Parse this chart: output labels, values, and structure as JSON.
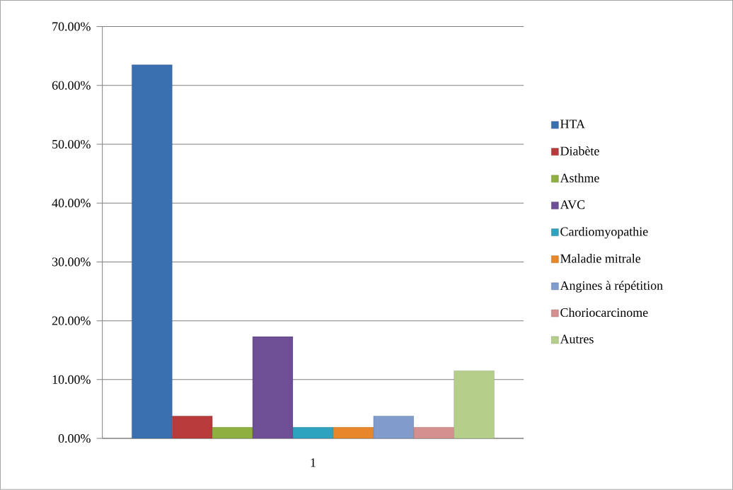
{
  "chart_data": {
    "type": "bar",
    "categories": [
      "1"
    ],
    "series": [
      {
        "name": "HTA",
        "color": "#3a6fb0",
        "values": [
          63.5
        ]
      },
      {
        "name": "Diabète",
        "color": "#b83a3a",
        "values": [
          3.8
        ]
      },
      {
        "name": "Asthme",
        "color": "#8fb040",
        "values": [
          1.9
        ]
      },
      {
        "name": "AVC",
        "color": "#6e4f96",
        "values": [
          17.3
        ]
      },
      {
        "name": "Cardiomyopathie",
        "color": "#2ea3c0",
        "values": [
          1.9
        ]
      },
      {
        "name": "Maladie mitrale",
        "color": "#e8862a",
        "values": [
          1.9
        ]
      },
      {
        "name": "Angines à répétition",
        "color": "#7f9ccc",
        "values": [
          3.8
        ]
      },
      {
        "name": "Choriocarcinome",
        "color": "#d48f8f",
        "values": [
          1.9
        ]
      },
      {
        "name": "Autres",
        "color": "#b5cf8a",
        "values": [
          11.5
        ]
      }
    ],
    "ylim": [
      0,
      70
    ],
    "yticks": [
      {
        "value": 0,
        "label": "0.00%"
      },
      {
        "value": 10,
        "label": "10.00%"
      },
      {
        "value": 20,
        "label": "20.00%"
      },
      {
        "value": 30,
        "label": "30.00%"
      },
      {
        "value": 40,
        "label": "40.00%"
      },
      {
        "value": 50,
        "label": "50.00%"
      },
      {
        "value": 60,
        "label": "60.00%"
      },
      {
        "value": 70,
        "label": "70.00%"
      }
    ],
    "grid": "y",
    "legend": "right"
  }
}
